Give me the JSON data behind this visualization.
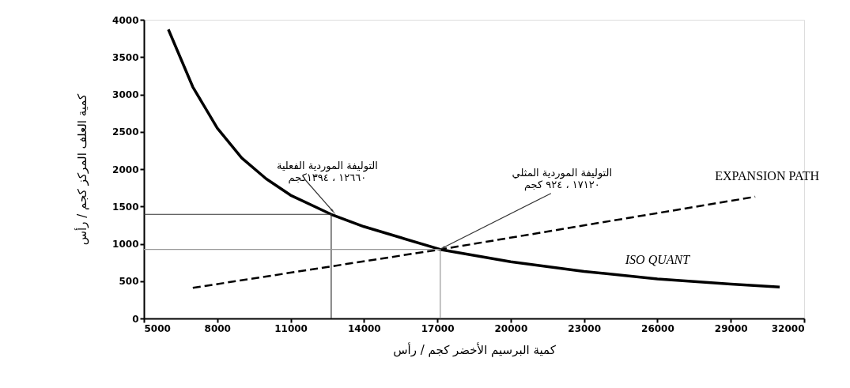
{
  "chart_data": {
    "type": "line",
    "xlabel": "كمية البرسيم الأخضر كجم / رأس",
    "ylabel": "كمية العلف المركز كجم / رأس",
    "xlim": [
      5000,
      32000
    ],
    "xticks": [
      5000,
      8000,
      11000,
      14000,
      17000,
      20000,
      23000,
      26000,
      29000,
      32000
    ],
    "ylim": [
      0,
      4000
    ],
    "yticks": [
      0,
      500,
      1000,
      1500,
      2000,
      2500,
      3000,
      3500,
      4000
    ],
    "grid": false,
    "legend": false,
    "marker": "none",
    "series": [
      {
        "name": "ISO QUANT",
        "color": "#000000",
        "line_style": "solid",
        "x": [
          6000,
          7000,
          8000,
          9000,
          10000,
          11000,
          12660,
          14000,
          17120,
          20000,
          23000,
          26000,
          29000,
          31000
        ],
        "values": [
          3870,
          3100,
          2550,
          2150,
          1870,
          1650,
          1394,
          1230,
          924,
          760,
          630,
          530,
          460,
          420
        ]
      },
      {
        "name": "EXPANSION PATH",
        "color": "#000000",
        "line_style": "dashed",
        "x": [
          7000,
          17120,
          30000
        ],
        "values": [
          410,
          924,
          1630
        ]
      },
      {
        "color": "#333333",
        "line_style": "solid",
        "x": [
          5000,
          12660,
          12660
        ],
        "values": [
          1394,
          1394,
          0
        ]
      },
      {
        "color": "#999999",
        "line_style": "solid",
        "x": [
          5000,
          17120,
          17120
        ],
        "values": [
          924,
          924,
          0
        ]
      }
    ],
    "annotations": [
      {
        "text": "التوليفة الموردية الفعلية\n١٢٦٦٠ ، ١٣٩٤كجم",
        "x": 12660,
        "y": 1394
      },
      {
        "text": "التوليفة الموردية المثلي\n١٧١٢٠ ، ٩٢٤ كجم",
        "x": 17120,
        "y": 924
      }
    ]
  }
}
